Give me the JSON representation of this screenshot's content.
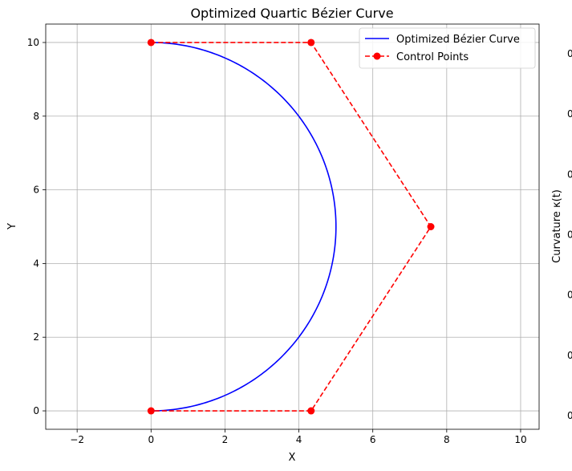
{
  "chart_data": {
    "type": "line",
    "title": "Optimized Quartic Bézier Curve",
    "xlabel": "X",
    "ylabel": "Y",
    "right_axis_label": "Curvature κ(t)",
    "right_tick_labels": [
      "0",
      "0",
      "0",
      "0",
      "0",
      "0",
      "0"
    ],
    "xlim": [
      -2.85,
      10.5
    ],
    "ylim": [
      -0.5,
      10.5
    ],
    "xticks": [
      -2,
      0,
      2,
      4,
      6,
      8,
      10
    ],
    "yticks": [
      0,
      2,
      4,
      6,
      8,
      10
    ],
    "xtick_labels": [
      "−2",
      "0",
      "2",
      "4",
      "6",
      "8",
      "10"
    ],
    "ytick_labels": [
      "0",
      "2",
      "4",
      "6",
      "8",
      "10"
    ],
    "grid": true,
    "legend_position": "top-right",
    "series": [
      {
        "name": "Optimized Bézier Curve",
        "style": "solid",
        "color": "#0000ff",
        "curve_type": "quartic-bezier",
        "control_points": [
          [
            0,
            10
          ],
          [
            4.33,
            10
          ],
          [
            7.57,
            5
          ],
          [
            4.33,
            0
          ],
          [
            0,
            0
          ]
        ]
      },
      {
        "name": "Control Points",
        "style": "dashed",
        "marker": "circle",
        "color": "#ff0000",
        "x": [
          0,
          4.33,
          7.57,
          4.33,
          0
        ],
        "y": [
          10,
          10,
          5,
          0,
          0
        ]
      }
    ]
  }
}
